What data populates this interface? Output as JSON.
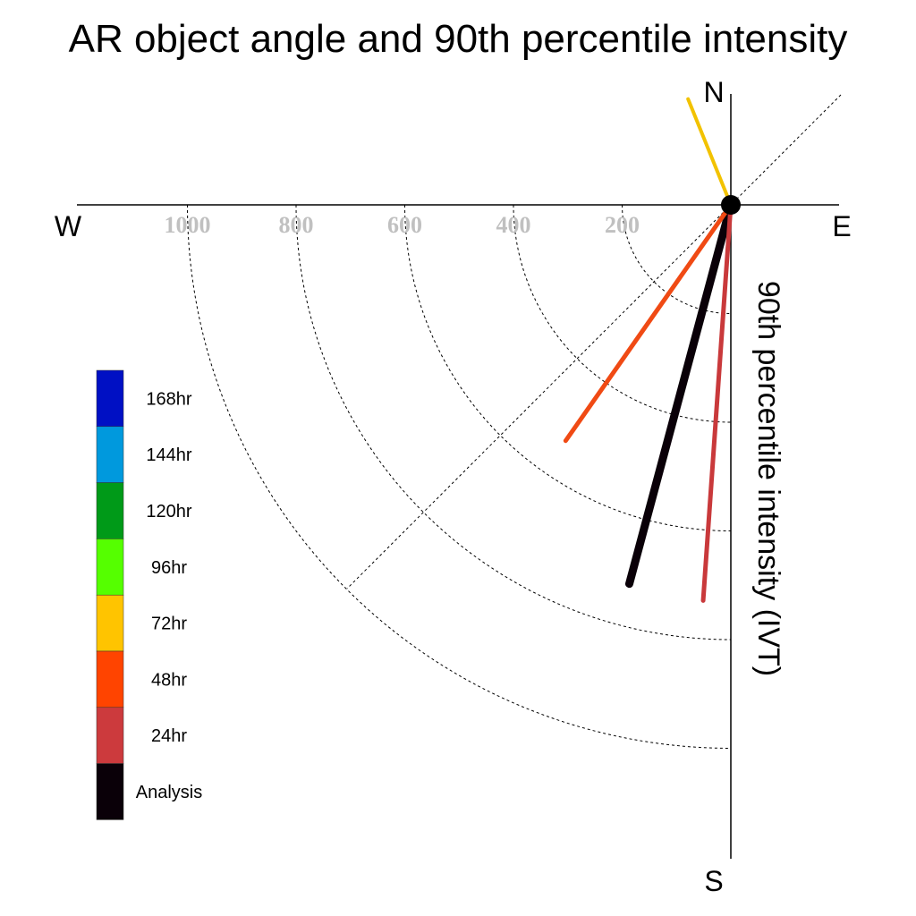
{
  "chart_data": {
    "type": "polar-vector",
    "title": "AR object angle and 90th percentile intensity",
    "radial_axis_label": "90th percentile intensity (IVT)",
    "compass": {
      "north": "N",
      "south": "S",
      "east": "E",
      "west": "W"
    },
    "radial_ticks": [
      200,
      400,
      600,
      800,
      1000
    ],
    "radial_tick_labels": [
      "200",
      "400",
      "600",
      "800",
      "1000"
    ],
    "rmax": 1200,
    "grid_rings": true,
    "diagonal_guide": true,
    "series": [
      {
        "name": "Analysis",
        "color": "#0a0008",
        "angle_deg": 195,
        "intensity": 722
      },
      {
        "name": "24hr",
        "color": "#c9393b",
        "angle_deg": 184,
        "intensity": 730
      },
      {
        "name": "48hr",
        "color": "#f04a14",
        "angle_deg": 215,
        "intensity": 530
      },
      {
        "name": "72hr",
        "color": "#f2c200",
        "angle_deg": 338,
        "intensity": 210
      }
    ],
    "legend": {
      "placement": "left",
      "entries": [
        {
          "label": "168hr",
          "color": "#0010c4"
        },
        {
          "label": "144hr",
          "color": "#0099dd"
        },
        {
          "label": "120hr",
          "color": "#009a18"
        },
        {
          "label": "96hr",
          "color": "#55ff00"
        },
        {
          "label": "72hr",
          "color": "#ffc400"
        },
        {
          "label": "48hr",
          "color": "#ff4400"
        },
        {
          "label": "24hr",
          "color": "#cc3a3d"
        },
        {
          "label": "Analysis",
          "color": "#0a0008"
        }
      ]
    }
  }
}
